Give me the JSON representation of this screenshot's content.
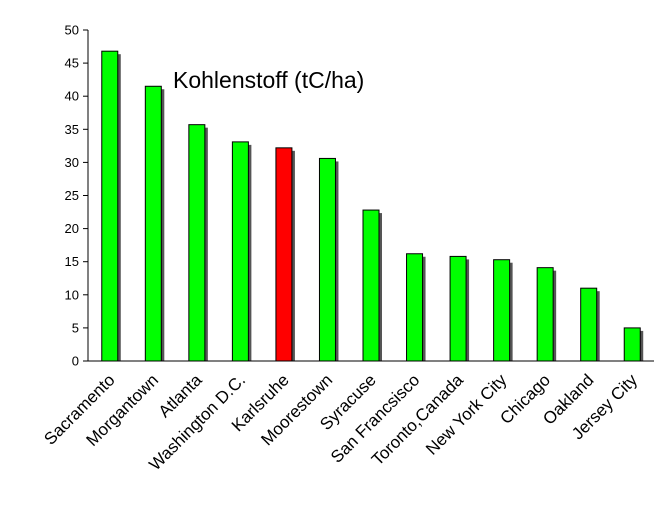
{
  "chart_data": {
    "type": "bar",
    "title": "Kohlenstoff (tC/ha)",
    "xlabel": "",
    "ylabel": "",
    "ylim": [
      0,
      50
    ],
    "yticks": [
      0,
      5,
      10,
      15,
      20,
      25,
      30,
      35,
      40,
      45,
      50
    ],
    "categories": [
      "Sacramento",
      "Morgantown",
      "Atlanta",
      "Washington D.C.",
      "Karlsruhe",
      "Moorestown",
      "Syracuse",
      "San Francsisco",
      "Toronto,Canada",
      "New York City",
      "Chicago",
      "Oakland",
      "Jersey City"
    ],
    "values": [
      46.8,
      41.5,
      35.7,
      33.1,
      32.2,
      30.6,
      22.8,
      16.2,
      15.8,
      15.3,
      14.1,
      11.0,
      5.0
    ],
    "grid": false,
    "colors": {
      "default_bar": "#00ff00",
      "highlight_bar": "#ff0000",
      "highlight_category": "Karlsruhe",
      "bar_shadow": "#555555",
      "axis": "#000000"
    }
  }
}
